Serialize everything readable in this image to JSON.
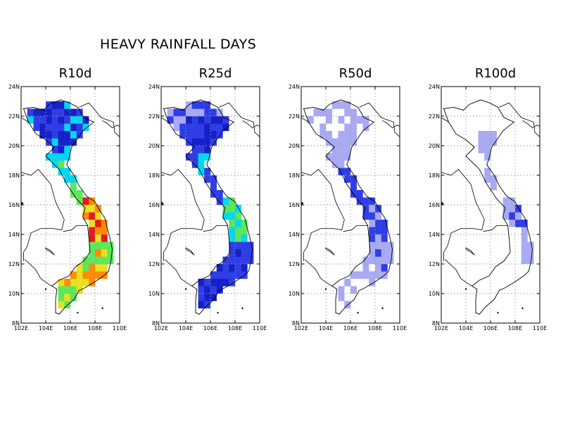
{
  "figure_title": "HEAVY RAINFALL DAYS",
  "axes": {
    "lat_ticks": [
      "8N",
      "10N",
      "12N",
      "14N",
      "16N",
      "18N",
      "20N",
      "22N",
      "24N"
    ],
    "lon_ticks": [
      "102E",
      "104E",
      "106E",
      "108E",
      "110E"
    ],
    "lon_range": [
      102,
      110
    ],
    "lat_range": [
      8,
      24
    ],
    "grid": "dotted"
  },
  "panels": [
    {
      "id": "r10d",
      "title": "R10d"
    },
    {
      "id": "r25d",
      "title": "R25d"
    },
    {
      "id": "r50d",
      "title": "R50d"
    },
    {
      "id": "r100d",
      "title": "R100d"
    }
  ],
  "colors": {
    "light_blue": "#a9aaf3",
    "blue": "#2f3de6",
    "dark_blue": "#1421c8",
    "cyan": "#00d8f0",
    "green": "#5ce85a",
    "yellow": "#e8e020",
    "orange": "#ff8c00",
    "red": "#e81818"
  }
}
